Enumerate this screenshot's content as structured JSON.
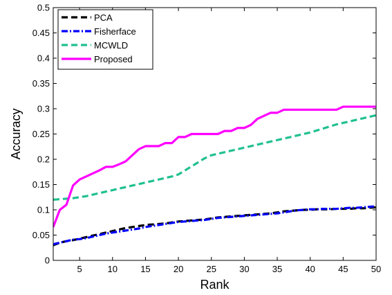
{
  "chart_data": {
    "type": "line",
    "title": "",
    "xlabel": "Rank",
    "ylabel": "Accuracy",
    "xlim": [
      1,
      50
    ],
    "ylim": [
      0,
      0.5
    ],
    "xticks": [
      5,
      10,
      15,
      20,
      25,
      30,
      35,
      40,
      45,
      50
    ],
    "yticks": [
      0,
      0.05,
      0.1,
      0.15,
      0.2,
      0.25,
      0.3,
      0.35,
      0.4,
      0.45,
      0.5
    ],
    "grid": false,
    "legend_position": "top-left",
    "x": [
      1,
      2,
      3,
      4,
      5,
      6,
      7,
      8,
      9,
      10,
      11,
      12,
      13,
      14,
      15,
      16,
      17,
      18,
      19,
      20,
      21,
      22,
      23,
      24,
      25,
      26,
      27,
      28,
      29,
      30,
      31,
      32,
      33,
      34,
      35,
      36,
      37,
      38,
      39,
      40,
      41,
      42,
      43,
      44,
      45,
      46,
      47,
      48,
      49,
      50
    ],
    "series": [
      {
        "name": "PCA",
        "color": "#000000",
        "style": "dashed",
        "values": [
          0.03,
          0.035,
          0.038,
          0.04,
          0.043,
          0.046,
          0.049,
          0.052,
          0.055,
          0.058,
          0.061,
          0.064,
          0.066,
          0.068,
          0.07,
          0.071,
          0.072,
          0.073,
          0.075,
          0.077,
          0.078,
          0.079,
          0.08,
          0.081,
          0.083,
          0.085,
          0.086,
          0.087,
          0.088,
          0.089,
          0.09,
          0.091,
          0.092,
          0.093,
          0.095,
          0.097,
          0.098,
          0.099,
          0.1,
          0.1,
          0.101,
          0.101,
          0.101,
          0.102,
          0.102,
          0.102,
          0.103,
          0.103,
          0.104,
          0.105
        ]
      },
      {
        "name": "Fisherface",
        "color": "#0000ff",
        "style": "dashdot",
        "values": [
          0.032,
          0.035,
          0.038,
          0.041,
          0.042,
          0.044,
          0.047,
          0.05,
          0.053,
          0.055,
          0.057,
          0.059,
          0.061,
          0.063,
          0.066,
          0.068,
          0.07,
          0.072,
          0.074,
          0.076,
          0.077,
          0.078,
          0.079,
          0.08,
          0.082,
          0.084,
          0.085,
          0.086,
          0.087,
          0.088,
          0.089,
          0.09,
          0.091,
          0.092,
          0.093,
          0.095,
          0.097,
          0.099,
          0.1,
          0.101,
          0.101,
          0.102,
          0.102,
          0.102,
          0.103,
          0.104,
          0.104,
          0.105,
          0.106,
          0.107
        ]
      },
      {
        "name": "MCWLD",
        "color": "#20c090",
        "style": "dashed",
        "values": [
          0.12,
          0.121,
          0.122,
          0.123,
          0.125,
          0.127,
          0.13,
          0.133,
          0.136,
          0.139,
          0.142,
          0.145,
          0.148,
          0.151,
          0.154,
          0.157,
          0.16,
          0.163,
          0.166,
          0.17,
          0.178,
          0.186,
          0.194,
          0.202,
          0.208,
          0.211,
          0.214,
          0.217,
          0.22,
          0.223,
          0.226,
          0.229,
          0.232,
          0.235,
          0.238,
          0.241,
          0.244,
          0.247,
          0.25,
          0.253,
          0.257,
          0.261,
          0.265,
          0.269,
          0.272,
          0.275,
          0.278,
          0.281,
          0.284,
          0.287
        ]
      },
      {
        "name": "Proposed",
        "color": "#ff00ff",
        "style": "solid",
        "values": [
          0.066,
          0.1,
          0.11,
          0.148,
          0.16,
          0.166,
          0.172,
          0.178,
          0.185,
          0.185,
          0.19,
          0.196,
          0.208,
          0.22,
          0.226,
          0.226,
          0.226,
          0.232,
          0.232,
          0.244,
          0.244,
          0.25,
          0.25,
          0.25,
          0.25,
          0.25,
          0.256,
          0.256,
          0.262,
          0.262,
          0.268,
          0.28,
          0.286,
          0.292,
          0.292,
          0.298,
          0.298,
          0.298,
          0.298,
          0.298,
          0.298,
          0.298,
          0.298,
          0.298,
          0.304,
          0.304,
          0.304,
          0.304,
          0.304,
          0.304
        ]
      }
    ]
  }
}
